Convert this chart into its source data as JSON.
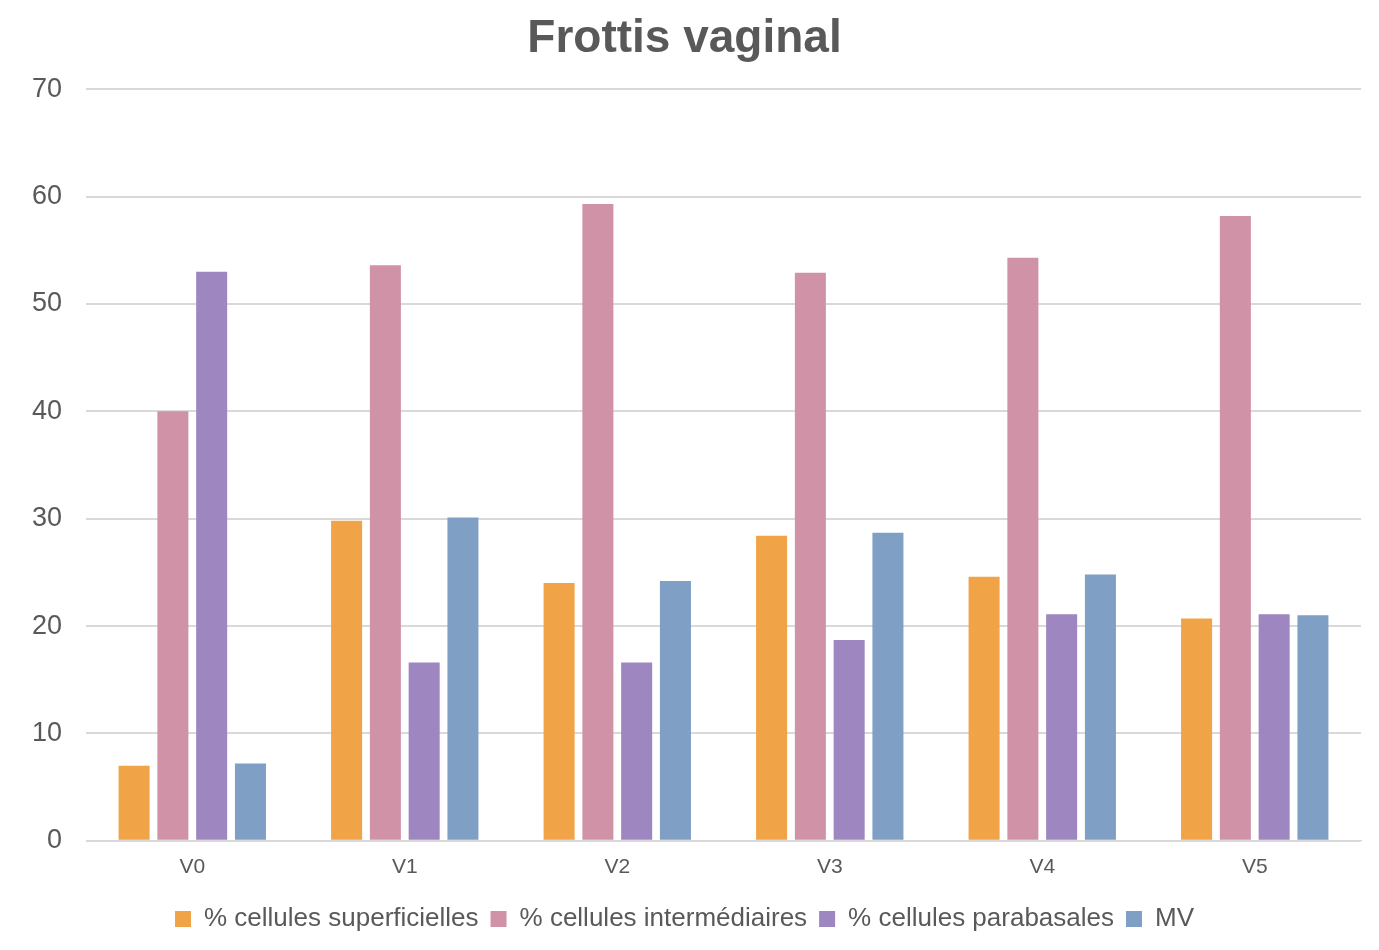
{
  "chart_data": {
    "type": "bar",
    "title": "Frottis vaginal",
    "categories": [
      "V0",
      "V1",
      "V2",
      "V3",
      "V4",
      "V5"
    ],
    "series": [
      {
        "name": "% cellules superficielles",
        "color": "#f0a347",
        "values": [
          7.0,
          29.8,
          24.0,
          28.4,
          24.6,
          20.7
        ]
      },
      {
        "name": "% cellules intermédiaires",
        "color": "#d092a7",
        "values": [
          40.0,
          53.6,
          59.3,
          52.9,
          54.3,
          58.2
        ]
      },
      {
        "name": "% cellules parabasales",
        "color": "#9e86c0",
        "values": [
          53.0,
          16.6,
          16.6,
          18.7,
          21.1,
          21.1
        ]
      },
      {
        "name": "MV",
        "color": "#7f9fc4",
        "values": [
          7.2,
          30.1,
          24.2,
          28.7,
          24.8,
          21.0
        ]
      }
    ],
    "ylim": [
      0,
      70
    ],
    "yticks": [
      0,
      10,
      20,
      30,
      40,
      50,
      60,
      70
    ],
    "grid": "y",
    "legend": "bottom"
  }
}
